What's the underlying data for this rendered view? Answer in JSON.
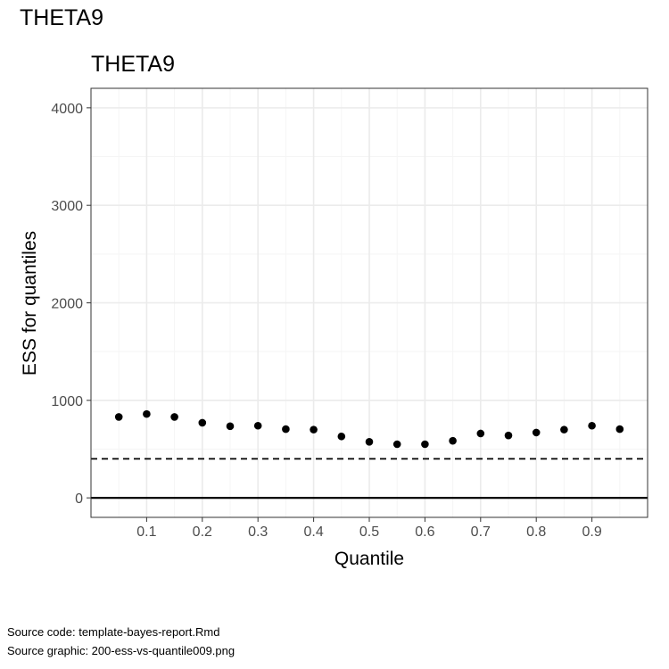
{
  "page": {
    "title": "THETA9",
    "source_code": "Source code: template-bayes-report.Rmd",
    "source_graphic": "Source graphic: 200-ess-vs-quantile009.png"
  },
  "chart_data": {
    "type": "scatter",
    "title": "THETA9",
    "xlabel": "Quantile",
    "ylabel": "ESS for quantiles",
    "xlim": [
      0.0,
      1.0
    ],
    "ylim": [
      -200,
      4200
    ],
    "xticks": [
      0.1,
      0.2,
      0.3,
      0.4,
      0.5,
      0.6,
      0.7,
      0.8,
      0.9
    ],
    "xtick_labels": [
      "0.1",
      "0.2",
      "0.3",
      "0.4",
      "0.5",
      "0.6",
      "0.7",
      "0.8",
      "0.9"
    ],
    "yticks": [
      0,
      1000,
      2000,
      3000,
      4000
    ],
    "ytick_labels": [
      "0",
      "1000",
      "2000",
      "3000",
      "4000"
    ],
    "grid": true,
    "reference_lines": [
      {
        "y": 400,
        "style": "dashed"
      },
      {
        "y": 0,
        "style": "solid"
      }
    ],
    "x": [
      0.05,
      0.1,
      0.15,
      0.2,
      0.25,
      0.3,
      0.35,
      0.4,
      0.45,
      0.5,
      0.55,
      0.6,
      0.65,
      0.7,
      0.75,
      0.8,
      0.85,
      0.9,
      0.95
    ],
    "y": [
      830,
      860,
      830,
      770,
      735,
      740,
      705,
      700,
      630,
      575,
      550,
      550,
      585,
      660,
      640,
      670,
      700,
      740,
      705
    ],
    "colors": {
      "point": "#000000",
      "panel_border": "#333333",
      "grid_major": "#ebebeb",
      "grid_minor": "#f5f5f5",
      "tick_text": "#4d4d4d"
    }
  }
}
